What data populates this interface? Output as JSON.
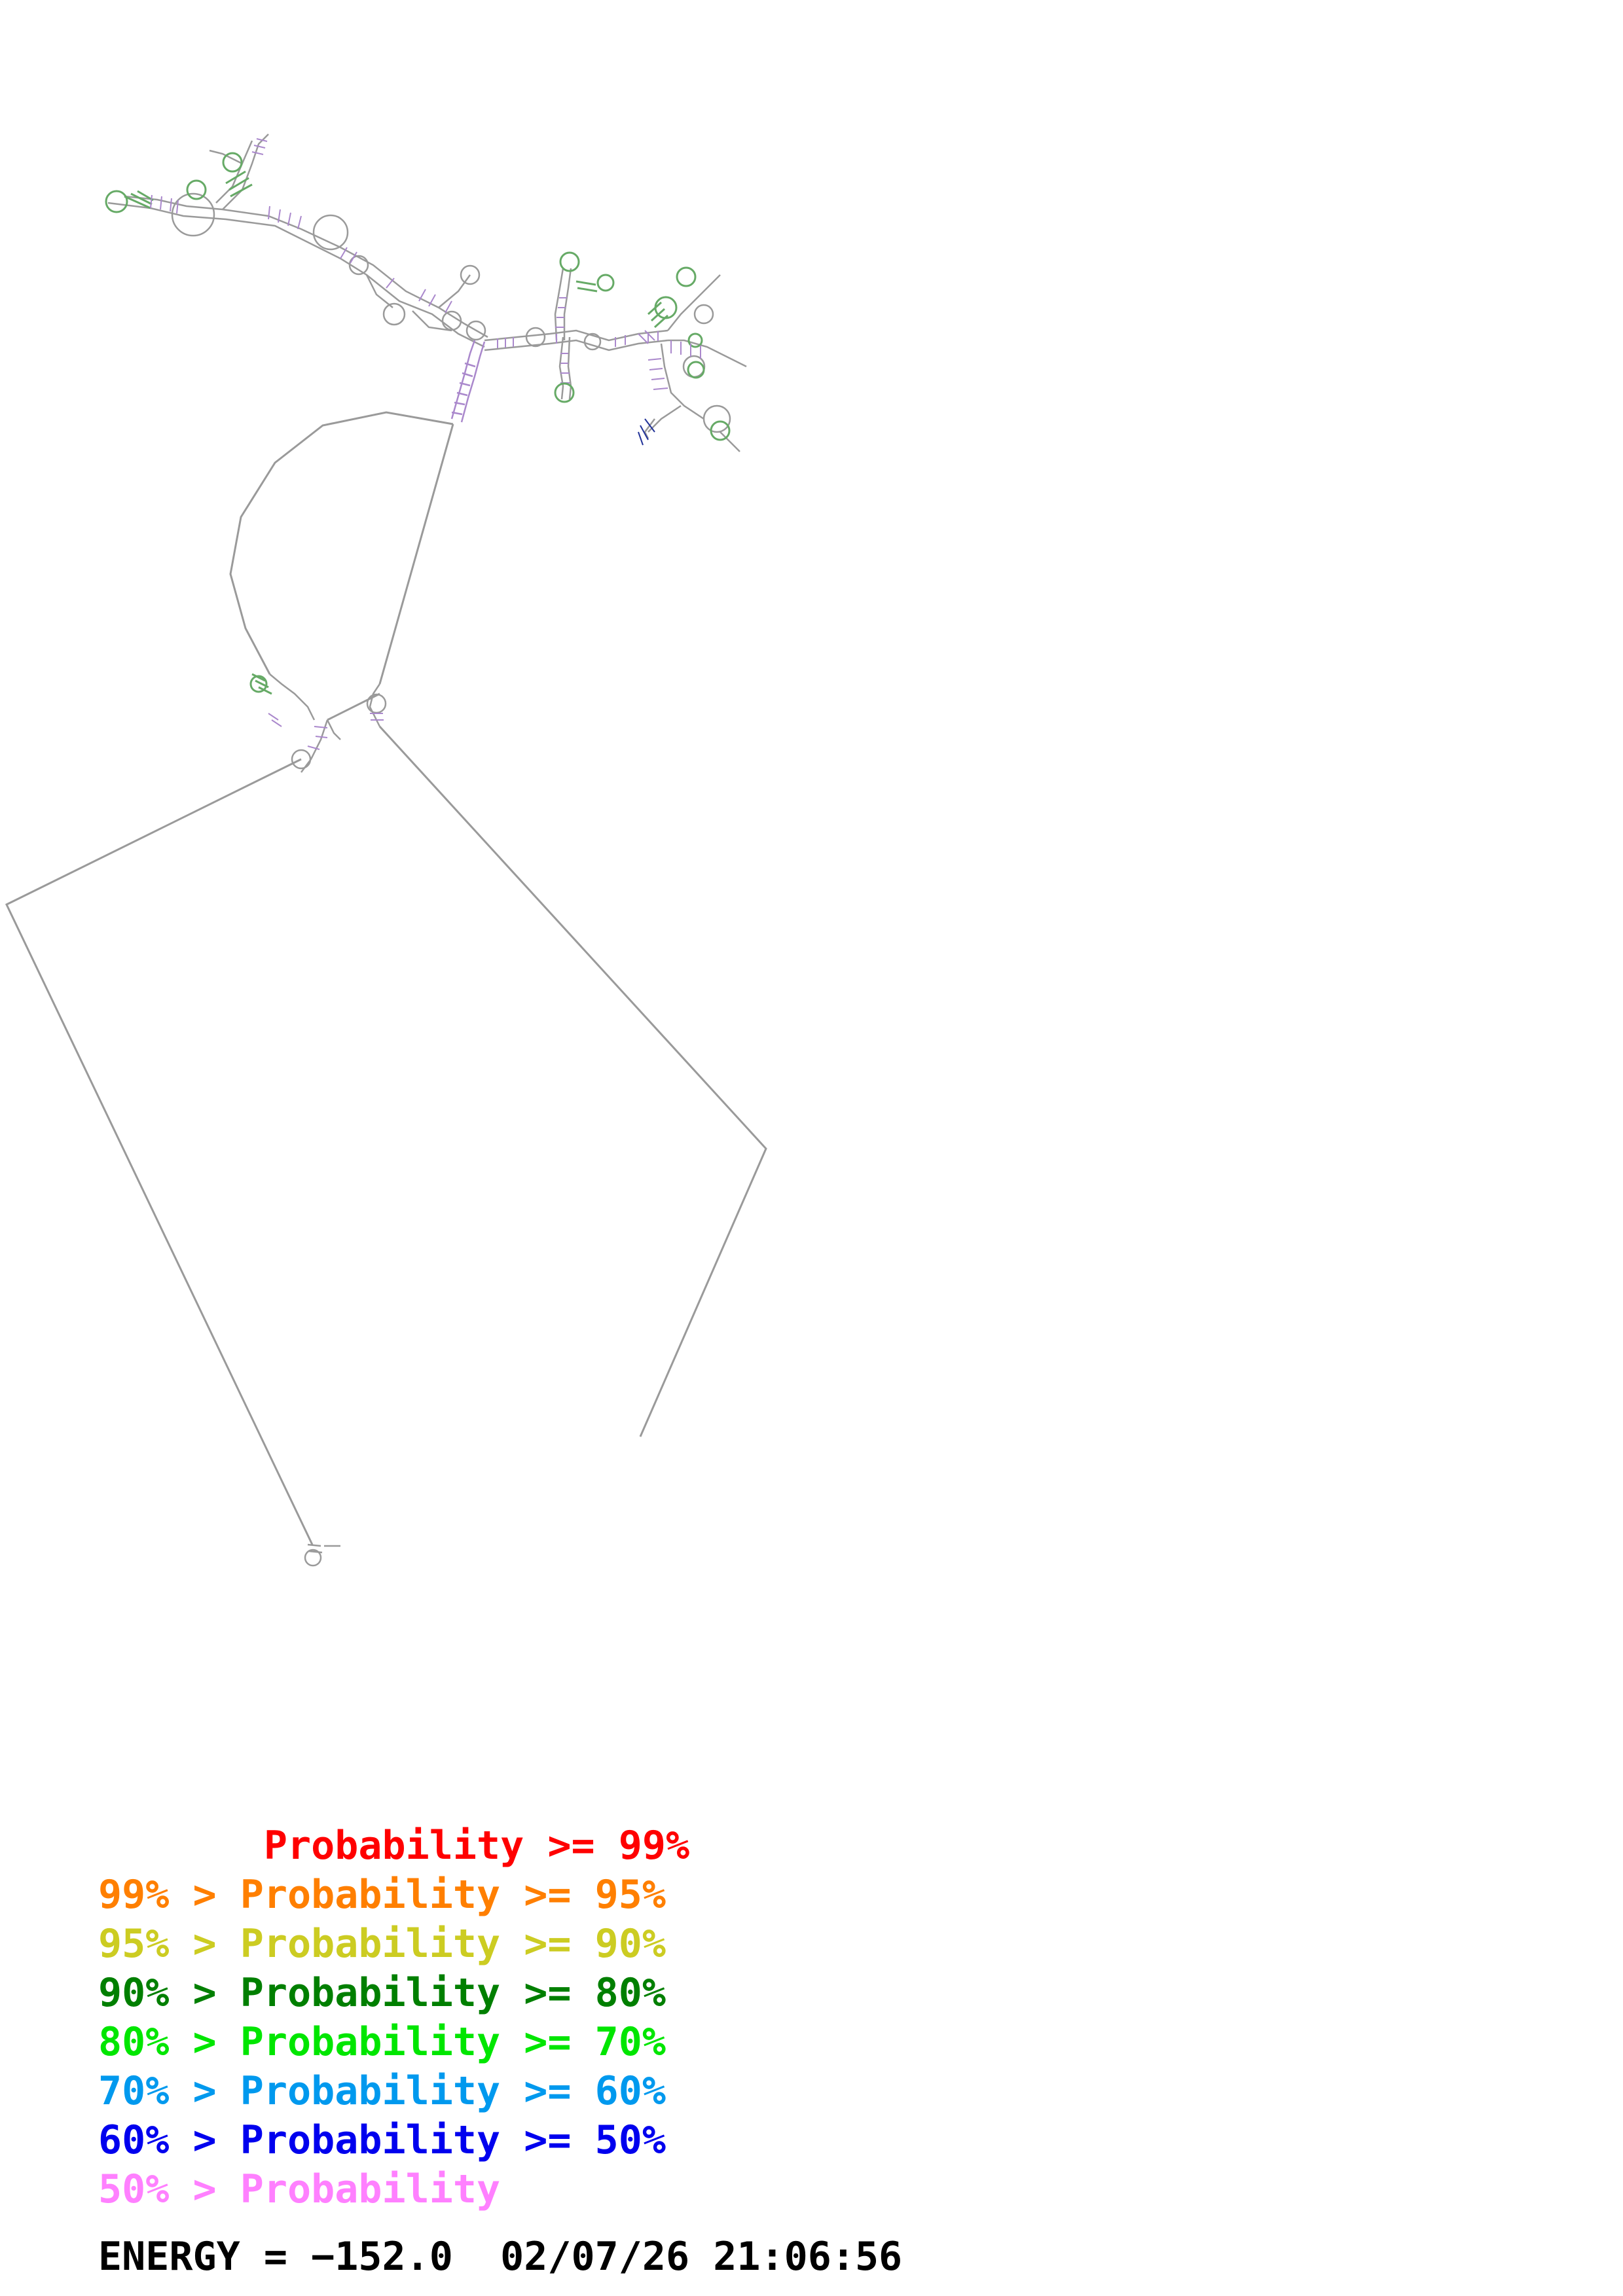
{
  "legend": {
    "entries": [
      {
        "text": "       Probability >= 99%",
        "color": "#ff0000"
      },
      {
        "text": "99% > Probability >= 95%",
        "color": "#ff7f00"
      },
      {
        "text": "95% > Probability >= 90%",
        "color": "#cccc22"
      },
      {
        "text": "90% > Probability >= 80%",
        "color": "#007f00"
      },
      {
        "text": "80% > Probability >= 70%",
        "color": "#00e600"
      },
      {
        "text": "70% > Probability >= 60%",
        "color": "#0099ee"
      },
      {
        "text": "60% > Probability >= 50%",
        "color": "#0000ee"
      },
      {
        "text": "50% > Probability",
        "color": "#ff80ff"
      }
    ]
  },
  "energy": {
    "text": "ENERGY = −152.0  02/07/26 21:06:56"
  },
  "colors": {
    "backbone": "#999999",
    "base_pair": "#cc99cc",
    "helix_green": "#66aa66"
  }
}
